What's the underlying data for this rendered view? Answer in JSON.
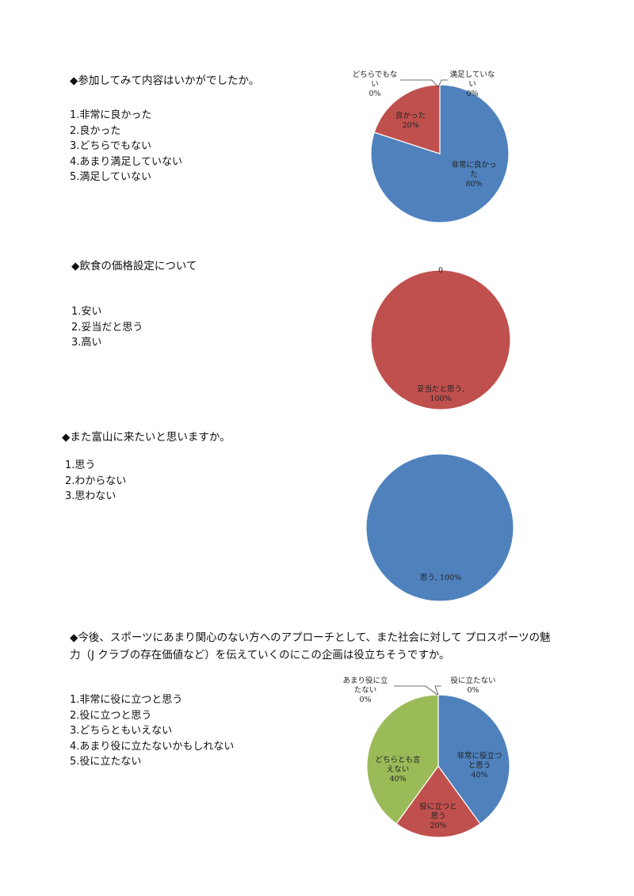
{
  "q1": {
    "question": "◆参加してみて内容はいかがでしたか。",
    "options": [
      "1.非常に良かった",
      "2.良かった",
      "3.どちらでもない",
      "4.あまり満足していない",
      "5.満足していない"
    ]
  },
  "q2": {
    "question": "◆飲食の価格設定について",
    "options": [
      "1.安い",
      "2.妥当だと思う",
      "3.高い"
    ]
  },
  "q3": {
    "question": "◆また富山に来たいと思いますか。",
    "options": [
      "1.思う",
      "2.わからない",
      "3.思わない"
    ]
  },
  "q4": {
    "question_line1": "◆今後、スポーツにあまり関心のない方へのアプローチとして、また社会に対して プロスポーツの魅",
    "question_line2": "力（J クラブの存在価値など）を伝えていくのにこの企画は役立ちそうですか。",
    "options": [
      "1.非常に役に立つと思う",
      "2.役に立つと思う",
      "3.どちらともいえない",
      "4.あまり役に立たないかもしれない",
      "5.役に立たない"
    ]
  },
  "chart_data": [
    {
      "type": "pie",
      "title": "",
      "slices": [
        {
          "label": "非常に良かった",
          "value": 80,
          "color": "#4F81BD",
          "label_lines": [
            "非常に良かっ",
            "た",
            "80%"
          ]
        },
        {
          "label": "良かった",
          "value": 20,
          "color": "#C0504D",
          "label_lines": [
            "良かった",
            "20%"
          ]
        },
        {
          "label": "どちらでもない",
          "value": 0,
          "color": "#9BBB59",
          "label_lines": [
            "どちらでもな",
            "い",
            "0%"
          ]
        },
        {
          "label": "満足していない",
          "value": 0,
          "color": "#8064A2",
          "label_lines": [
            "満足していな",
            "い",
            "0%"
          ]
        }
      ]
    },
    {
      "type": "pie",
      "title": "",
      "slices": [
        {
          "label": "安い",
          "value": 0,
          "color": "#4F81BD",
          "label_lines": [
            "0"
          ]
        },
        {
          "label": "妥当だと思う",
          "value": 100,
          "color": "#C0504D",
          "label_lines": [
            "妥当だと思う,",
            "100%"
          ]
        }
      ]
    },
    {
      "type": "pie",
      "title": "",
      "slices": [
        {
          "label": "思う",
          "value": 100,
          "color": "#4F81BD",
          "label_lines": [
            "思う, 100%"
          ]
        }
      ]
    },
    {
      "type": "pie",
      "title": "",
      "slices": [
        {
          "label": "非常に役立つと思う",
          "value": 40,
          "color": "#4F81BD",
          "label_lines": [
            "非常に役立つ",
            "と思う",
            "40%"
          ]
        },
        {
          "label": "役に立つと思う",
          "value": 20,
          "color": "#C0504D",
          "label_lines": [
            "役に立つと",
            "思う",
            "20%"
          ]
        },
        {
          "label": "どちらとも言えない",
          "value": 40,
          "color": "#9BBB59",
          "label_lines": [
            "どちらとも言",
            "えない",
            "40%"
          ]
        },
        {
          "label": "あまり役に立たない",
          "value": 0,
          "color": "#8064A2",
          "label_lines": [
            "あまり役に立",
            "たない",
            "0%"
          ]
        },
        {
          "label": "役に立たない",
          "value": 0,
          "color": "#4BACC6",
          "label_lines": [
            "役に立たない",
            "0%"
          ]
        }
      ]
    }
  ]
}
